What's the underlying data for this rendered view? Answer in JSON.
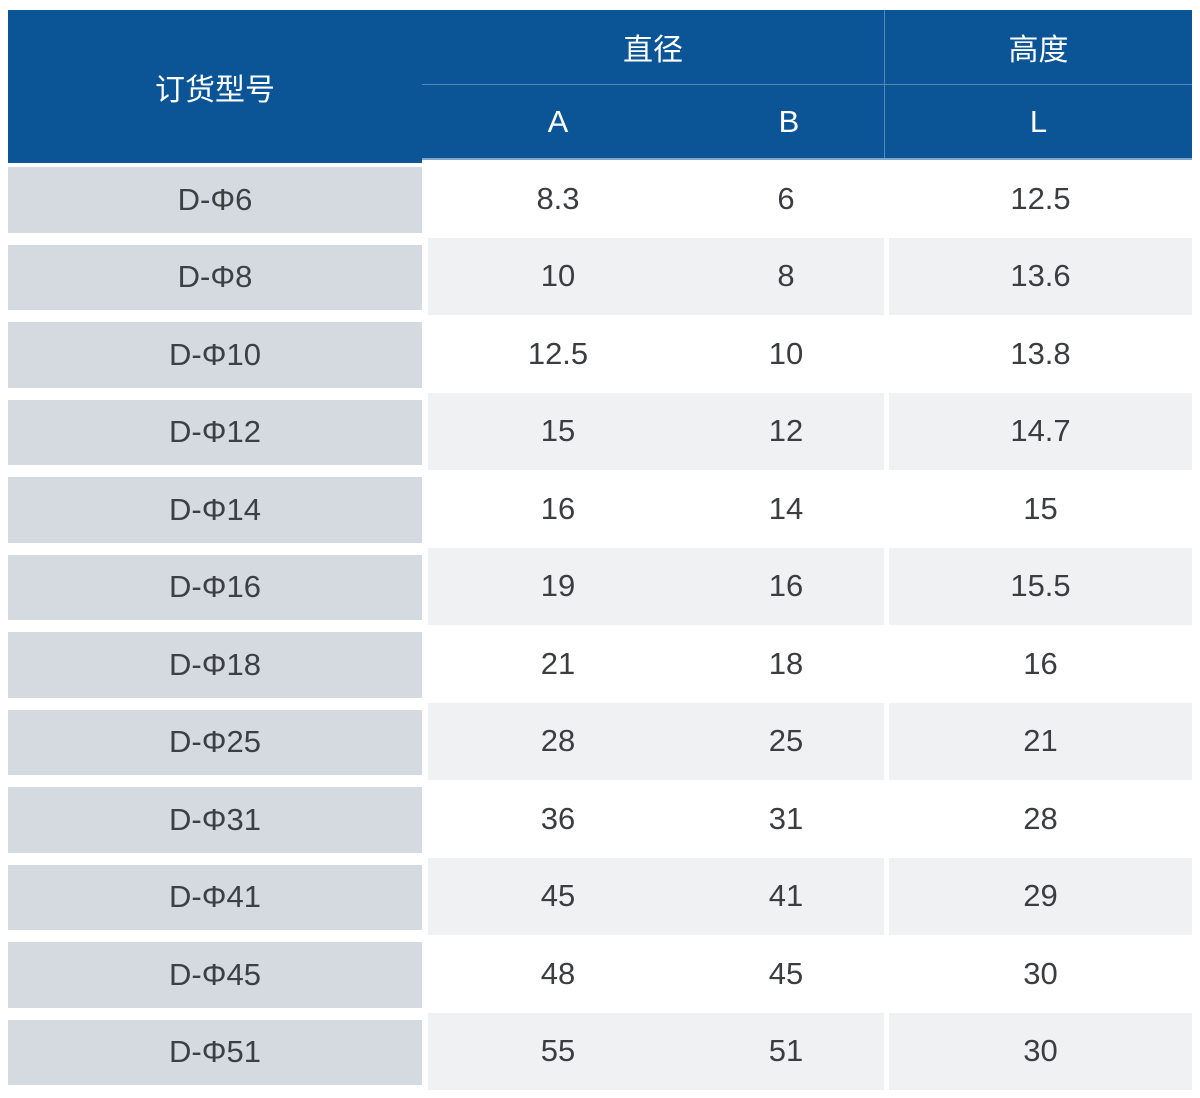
{
  "chart_data": {
    "type": "table",
    "columns": [
      "订货型号",
      "直径 A",
      "直径 B",
      "高度 L"
    ],
    "column_groups": [
      {
        "label": "订货型号",
        "span": 1
      },
      {
        "label": "直径",
        "span": 2,
        "subcolumns": [
          "A",
          "B"
        ]
      },
      {
        "label": "高度",
        "span": 1,
        "subcolumns": [
          "L"
        ]
      }
    ],
    "rows": [
      [
        "D-Φ6",
        "8.3",
        "6",
        "12.5"
      ],
      [
        "D-Φ8",
        "10",
        "8",
        "13.6"
      ],
      [
        "D-Φ10",
        "12.5",
        "10",
        "13.8"
      ],
      [
        "D-Φ12",
        "15",
        "12",
        "14.7"
      ],
      [
        "D-Φ14",
        "16",
        "14",
        "15"
      ],
      [
        "D-Φ16",
        "19",
        "16",
        "15.5"
      ],
      [
        "D-Φ18",
        "21",
        "18",
        "16"
      ],
      [
        "D-Φ25",
        "28",
        "25",
        "21"
      ],
      [
        "D-Φ31",
        "36",
        "31",
        "28"
      ],
      [
        "D-Φ41",
        "45",
        "41",
        "29"
      ],
      [
        "D-Φ45",
        "48",
        "45",
        "30"
      ],
      [
        "D-Φ51",
        "55",
        "51",
        "30"
      ]
    ]
  },
  "header": {
    "model_label": "订货型号",
    "diameter_label": "直径",
    "height_label": "高度",
    "col_a": "A",
    "col_b": "B",
    "col_l": "L"
  },
  "rows": [
    {
      "model": "D-Φ6",
      "a": "8.3",
      "b": "6",
      "l": "12.5"
    },
    {
      "model": "D-Φ8",
      "a": "10",
      "b": "8",
      "l": "13.6"
    },
    {
      "model": "D-Φ10",
      "a": "12.5",
      "b": "10",
      "l": "13.8"
    },
    {
      "model": "D-Φ12",
      "a": "15",
      "b": "12",
      "l": "14.7"
    },
    {
      "model": "D-Φ14",
      "a": "16",
      "b": "14",
      "l": "15"
    },
    {
      "model": "D-Φ16",
      "a": "19",
      "b": "16",
      "l": "15.5"
    },
    {
      "model": "D-Φ18",
      "a": "21",
      "b": "18",
      "l": "16"
    },
    {
      "model": "D-Φ25",
      "a": "28",
      "b": "25",
      "l": "21"
    },
    {
      "model": "D-Φ31",
      "a": "36",
      "b": "31",
      "l": "28"
    },
    {
      "model": "D-Φ41",
      "a": "45",
      "b": "41",
      "l": "29"
    },
    {
      "model": "D-Φ45",
      "a": "48",
      "b": "45",
      "l": "30"
    },
    {
      "model": "D-Φ51",
      "a": "55",
      "b": "51",
      "l": "30"
    }
  ],
  "colors": {
    "header_bg": "#0b5596",
    "header_text": "#ffffff",
    "header_underline": "#7ea9cd",
    "model_cell_bg": "#d5dae1",
    "row_alt_bg": "#f0f1f2",
    "body_text": "#3b3e41"
  }
}
